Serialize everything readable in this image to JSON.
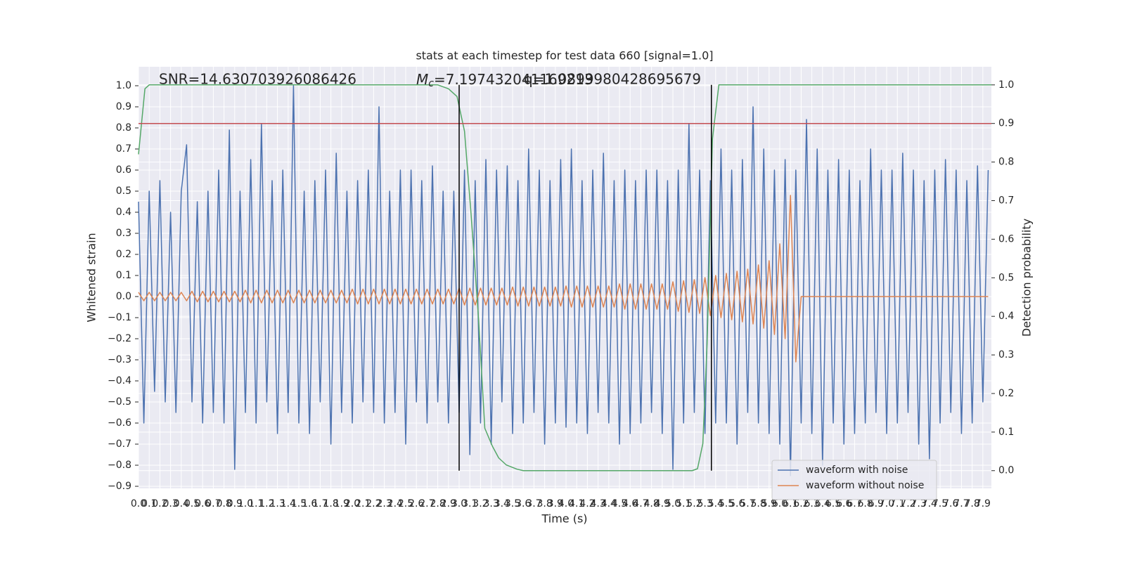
{
  "chart_data": {
    "type": "line",
    "title": "stats at each timestep for test data 660 [signal=1.0]",
    "xlabel": "Time (s)",
    "ylabel": "Whitened strain",
    "y2label": "Detection probability",
    "annotations": {
      "snr": "SNR=14.630703926086426",
      "mc": {
        "symbol": "M",
        "subscript": "c",
        "text": "=7.197432041169213"
      },
      "q": "q=1.0899980428695679"
    },
    "xlim": [
      0,
      7.98
    ],
    "ylim": [
      -0.91,
      1.09
    ],
    "y2lim": [
      -0.046,
      1.047
    ],
    "grid": true,
    "legend": "lower right",
    "xticks": [
      {
        "value": 0,
        "label": "0.0"
      },
      0.1,
      0.2,
      0.3,
      0.4,
      0.5,
      0.6,
      0.7,
      0.8,
      0.9,
      {
        "value": 1,
        "label": "1.0"
      },
      1.1,
      1.2,
      1.3,
      1.4,
      1.5,
      1.6,
      1.7,
      1.8,
      1.9,
      {
        "value": 2,
        "label": "2.0"
      },
      2.1,
      2.2,
      2.3,
      2.4,
      2.5,
      2.6,
      2.7,
      2.8,
      2.9,
      {
        "value": 3,
        "label": "3.0"
      },
      3.1,
      3.2,
      3.3,
      3.4,
      3.5,
      3.6,
      3.7,
      3.8,
      3.9,
      {
        "value": 4,
        "label": "4.0"
      },
      4.1,
      4.2,
      4.3,
      4.4,
      4.5,
      4.6,
      4.7,
      4.8,
      4.9,
      {
        "value": 5,
        "label": "5.0"
      },
      5.1,
      5.2,
      5.3,
      5.4,
      5.5,
      5.6,
      5.7,
      5.8,
      5.9,
      {
        "value": 6,
        "label": "6.0"
      },
      6.1,
      6.2,
      6.3,
      6.4,
      6.5,
      6.6,
      6.7,
      6.8,
      6.9,
      {
        "value": 7,
        "label": "7.0"
      },
      7.1,
      7.2,
      7.3,
      7.4,
      7.5,
      7.6,
      7.7,
      7.8,
      7.9
    ],
    "yticks": [
      {
        "value": -0.9,
        "label": "−0.9"
      },
      {
        "value": -0.8,
        "label": "−0.8"
      },
      {
        "value": -0.7,
        "label": "−0.7"
      },
      {
        "value": -0.6,
        "label": "−0.6"
      },
      {
        "value": -0.5,
        "label": "−0.5"
      },
      {
        "value": -0.4,
        "label": "−0.4"
      },
      {
        "value": -0.3,
        "label": "−0.3"
      },
      {
        "value": -0.2,
        "label": "−0.2"
      },
      {
        "value": -0.1,
        "label": "−0.1"
      },
      {
        "value": 0,
        "label": "0.0"
      },
      0.1,
      0.2,
      0.3,
      0.4,
      0.5,
      0.6,
      0.7,
      0.8,
      0.9,
      {
        "value": 1,
        "label": "1.0"
      }
    ],
    "y2ticks": [
      {
        "value": 0,
        "label": "0.0"
      },
      0.1,
      0.2,
      0.3,
      0.4,
      0.5,
      0.6,
      0.7,
      0.8,
      0.9,
      {
        "value": 1,
        "label": "1.0"
      }
    ],
    "x": [
      0,
      0.05,
      0.1,
      0.15,
      0.2,
      0.25,
      0.3,
      0.35,
      0.4,
      0.45,
      0.5,
      0.55,
      0.6,
      0.65,
      0.7,
      0.75,
      0.8,
      0.85,
      0.9,
      0.95,
      1,
      1.05,
      1.1,
      1.15,
      1.2,
      1.25,
      1.3,
      1.35,
      1.4,
      1.45,
      1.5,
      1.55,
      1.6,
      1.65,
      1.7,
      1.75,
      1.8,
      1.85,
      1.9,
      1.95,
      2,
      2.05,
      2.1,
      2.15,
      2.2,
      2.25,
      2.3,
      2.35,
      2.4,
      2.45,
      2.5,
      2.55,
      2.6,
      2.65,
      2.7,
      2.75,
      2.8,
      2.85,
      2.9,
      2.95,
      3,
      3.05,
      3.1,
      3.15,
      3.2,
      3.25,
      3.3,
      3.35,
      3.4,
      3.45,
      3.5,
      3.55,
      3.6,
      3.65,
      3.7,
      3.75,
      3.8,
      3.85,
      3.9,
      3.95,
      4,
      4.05,
      4.1,
      4.15,
      4.2,
      4.25,
      4.3,
      4.35,
      4.4,
      4.45,
      4.5,
      4.55,
      4.6,
      4.65,
      4.7,
      4.75,
      4.8,
      4.85,
      4.9,
      4.95,
      5,
      5.05,
      5.1,
      5.15,
      5.2,
      5.25,
      5.3,
      5.35,
      5.4,
      5.45,
      5.5,
      5.55,
      5.6,
      5.65,
      5.7,
      5.75,
      5.8,
      5.85,
      5.9,
      5.95,
      6,
      6.05,
      6.1,
      6.15,
      6.2,
      6.25,
      6.3,
      6.35,
      6.4,
      6.45,
      6.5,
      6.55,
      6.6,
      6.65,
      6.7,
      6.75,
      6.8,
      6.85,
      6.9,
      6.95,
      7,
      7.05,
      7.1,
      7.15,
      7.2,
      7.25,
      7.3,
      7.35,
      7.4,
      7.45,
      7.5,
      7.55,
      7.6,
      7.65,
      7.7,
      7.75,
      7.8,
      7.85,
      7.9,
      7.95
    ],
    "series": [
      {
        "name": "waveform with noise",
        "color": "#4c72b0",
        "values": [
          0.45,
          -0.6,
          0.5,
          -0.45,
          0.55,
          -0.5,
          0.4,
          -0.55,
          0.5,
          0.72,
          -0.5,
          0.45,
          -0.6,
          0.5,
          -0.55,
          0.6,
          -0.6,
          0.79,
          -0.82,
          0.5,
          -0.55,
          0.65,
          -0.6,
          0.82,
          -0.5,
          0.55,
          -0.65,
          0.6,
          -0.55,
          1.0,
          -0.6,
          0.5,
          -0.65,
          0.55,
          -0.5,
          0.6,
          -0.7,
          0.68,
          -0.55,
          0.5,
          -0.6,
          0.55,
          -0.5,
          0.6,
          -0.55,
          0.9,
          -0.6,
          0.5,
          -0.55,
          0.6,
          -0.7,
          0.6,
          -0.5,
          0.55,
          -0.6,
          0.62,
          -0.5,
          0.5,
          -0.6,
          0.5,
          -0.55,
          0.6,
          -0.75,
          0.55,
          -0.6,
          0.65,
          -0.7,
          0.6,
          -0.5,
          0.62,
          -0.65,
          0.55,
          -0.6,
          0.7,
          -0.55,
          0.6,
          -0.7,
          0.55,
          -0.6,
          0.65,
          -0.62,
          0.7,
          -0.6,
          0.55,
          -0.65,
          0.6,
          -0.55,
          0.68,
          -0.6,
          0.55,
          -0.7,
          0.6,
          -0.65,
          0.55,
          -0.6,
          0.6,
          -0.55,
          0.6,
          -0.65,
          0.55,
          -0.82,
          0.6,
          -0.6,
          0.82,
          -0.55,
          0.6,
          -0.65,
          0.55,
          -0.6,
          0.7,
          -0.6,
          0.6,
          -0.7,
          0.65,
          -0.55,
          0.9,
          -0.6,
          0.7,
          -0.65,
          0.6,
          -0.7,
          0.65,
          -0.85,
          0.6,
          -0.6,
          0.84,
          -0.65,
          0.7,
          -0.8,
          0.6,
          -0.6,
          0.65,
          -0.7,
          0.6,
          -0.65,
          0.55,
          -0.6,
          0.7,
          -0.55,
          0.6,
          -0.65,
          0.6,
          -0.6,
          0.68,
          -0.55,
          0.6,
          -0.7,
          0.55,
          -0.77,
          0.6,
          -0.6,
          0.65,
          -0.55,
          0.6,
          -0.65,
          0.55,
          -0.6,
          0.62,
          -0.5,
          0.6
        ]
      },
      {
        "name": "waveform without noise",
        "color": "#dd8452",
        "values": [
          0.02,
          -0.02,
          0.02,
          -0.02,
          0.02,
          -0.02,
          0.02,
          -0.02,
          0.02,
          -0.02,
          0.025,
          -0.025,
          0.025,
          -0.025,
          0.025,
          -0.025,
          0.025,
          -0.025,
          0.025,
          -0.025,
          0.03,
          -0.03,
          0.03,
          -0.03,
          0.03,
          -0.03,
          0.03,
          -0.03,
          0.03,
          -0.03,
          0.03,
          -0.03,
          0.03,
          -0.03,
          0.03,
          -0.03,
          0.03,
          -0.03,
          0.03,
          -0.03,
          0.035,
          -0.035,
          0.035,
          -0.035,
          0.035,
          -0.035,
          0.035,
          -0.035,
          0.035,
          -0.035,
          0.035,
          -0.035,
          0.035,
          -0.035,
          0.035,
          -0.035,
          0.035,
          -0.035,
          0.035,
          -0.035,
          0.04,
          -0.04,
          0.04,
          -0.04,
          0.04,
          -0.04,
          0.04,
          -0.04,
          0.04,
          -0.04,
          0.045,
          -0.045,
          0.045,
          -0.045,
          0.045,
          -0.045,
          0.045,
          -0.045,
          0.045,
          -0.045,
          0.05,
          -0.05,
          0.05,
          -0.05,
          0.05,
          -0.05,
          0.05,
          -0.05,
          0.05,
          -0.05,
          0.06,
          -0.06,
          0.06,
          -0.06,
          0.06,
          -0.06,
          0.06,
          -0.06,
          0.06,
          -0.06,
          0.07,
          -0.07,
          0.075,
          -0.075,
          0.08,
          -0.08,
          0.09,
          -0.09,
          0.1,
          -0.1,
          0.11,
          -0.11,
          0.12,
          -0.12,
          0.13,
          -0.13,
          0.15,
          -0.15,
          0.17,
          -0.18,
          0.25,
          -0.2,
          0.48,
          -0.31,
          0,
          0,
          0,
          0,
          0,
          0,
          0,
          0,
          0,
          0,
          0,
          0,
          0,
          0,
          0,
          0,
          0,
          0,
          0,
          0,
          0,
          0,
          0,
          0,
          0,
          0,
          0,
          0,
          0,
          0,
          0,
          0,
          0,
          0,
          0,
          0
        ]
      },
      {
        "color": "#55a868",
        "axis": "y2",
        "x": [
          0,
          0.06,
          0.1,
          0.2,
          0.5,
          1,
          1.5,
          2,
          2.5,
          2.8,
          2.9,
          2.98,
          3.05,
          3.11,
          3.18,
          3.24,
          3.31,
          3.37,
          3.44,
          3.54,
          3.6,
          4,
          4.5,
          5,
          5.18,
          5.23,
          5.28,
          5.32,
          5.37,
          5.43,
          5.5,
          6,
          7,
          7.98
        ],
        "values": [
          0.82,
          0.99,
          1,
          1,
          1,
          1,
          1,
          1,
          1,
          1,
          0.99,
          0.97,
          0.88,
          0.67,
          0.4,
          0.11,
          0.064,
          0.033,
          0.015,
          0.004,
          0,
          0,
          0,
          0,
          0,
          0.005,
          0.07,
          0.33,
          0.86,
          1,
          1,
          1,
          1,
          1
        ]
      }
    ],
    "hline": {
      "value": 0.9,
      "axis": "y2",
      "color": "#c44e52"
    },
    "vlines": {
      "x": [
        3.0,
        5.36
      ],
      "ymin": 0,
      "ymax": 1,
      "axis": "y2",
      "color": "#000000"
    }
  }
}
